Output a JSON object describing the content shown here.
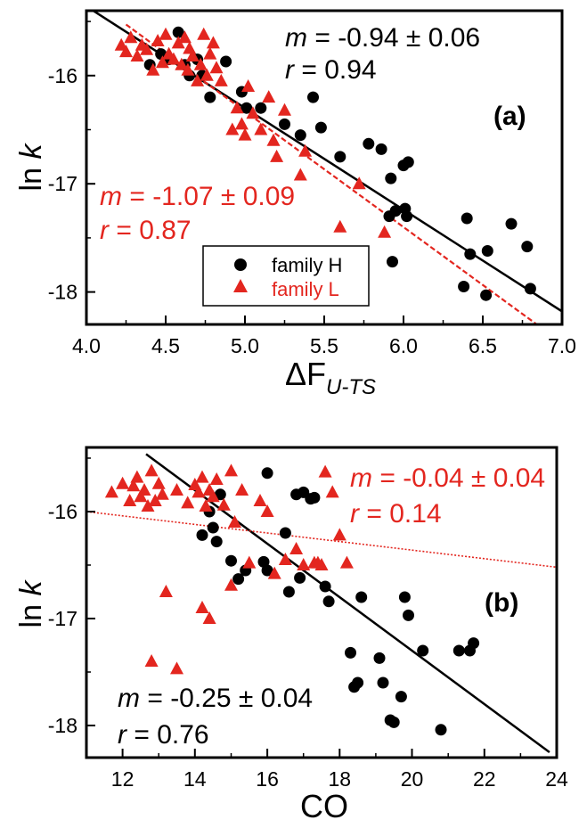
{
  "chart_data": [
    {
      "type": "scatter",
      "panel_label": "(a)",
      "xlabel_prefix": "ΔF",
      "xlabel_sub": "U-TS",
      "ylabel_main": "ln",
      "ylabel_var": "k",
      "xlim": [
        4.0,
        7.0
      ],
      "ylim": [
        -18.3,
        -15.4
      ],
      "xticks": [
        4.0,
        4.5,
        5.0,
        5.5,
        6.0,
        6.5,
        7.0
      ],
      "xtick_labels": [
        "4.0",
        "4.5",
        "5.0",
        "5.5",
        "6.0",
        "6.5",
        "7.0"
      ],
      "yticks": [
        -16,
        -17,
        -18
      ],
      "ytick_labels": [
        "-16",
        "-17",
        "-18"
      ],
      "legend": {
        "position": "lower-center",
        "entries": [
          {
            "series": "H",
            "label": "family H"
          },
          {
            "series": "L",
            "label": "family L"
          }
        ]
      },
      "series": [
        {
          "name": "family H",
          "key": "H",
          "marker": "circle",
          "color": "#000000",
          "x": [
            4.4,
            4.47,
            4.52,
            4.58,
            4.62,
            4.65,
            4.7,
            4.73,
            4.78,
            4.88,
            4.98,
            5.01,
            5.1,
            5.25,
            5.35,
            5.43,
            5.48,
            5.6,
            5.78,
            5.86,
            5.91,
            5.92,
            5.93,
            5.95,
            6.0,
            6.01,
            6.02,
            6.03,
            6.38,
            6.4,
            6.42,
            6.52,
            6.53,
            6.68,
            6.78,
            6.8
          ],
          "y": [
            -15.9,
            -15.8,
            -15.85,
            -15.6,
            -15.9,
            -16.0,
            -15.85,
            -16.0,
            -16.2,
            -15.87,
            -16.15,
            -16.3,
            -16.3,
            -16.45,
            -16.55,
            -16.2,
            -16.48,
            -16.75,
            -16.63,
            -16.68,
            -17.3,
            -16.95,
            -17.72,
            -17.25,
            -16.83,
            -17.23,
            -17.3,
            -16.8,
            -17.95,
            -17.32,
            -17.65,
            -18.03,
            -17.62,
            -17.37,
            -17.58,
            -17.97
          ]
        },
        {
          "name": "family L",
          "key": "L",
          "marker": "triangle",
          "color": "#e3261f",
          "x": [
            4.22,
            4.25,
            4.28,
            4.32,
            4.35,
            4.38,
            4.42,
            4.45,
            4.48,
            4.5,
            4.52,
            4.55,
            4.58,
            4.6,
            4.62,
            4.64,
            4.65,
            4.67,
            4.7,
            4.72,
            4.74,
            4.76,
            4.78,
            4.8,
            4.82,
            4.85,
            4.92,
            4.95,
            4.98,
            5.0,
            5.02,
            5.05,
            5.1,
            5.15,
            5.18,
            5.2,
            5.25,
            5.35,
            5.38,
            5.6,
            5.72,
            5.88
          ],
          "y": [
            -15.72,
            -15.78,
            -15.65,
            -15.82,
            -15.72,
            -15.76,
            -15.95,
            -15.68,
            -15.88,
            -15.62,
            -15.8,
            -15.85,
            -15.7,
            -15.9,
            -15.65,
            -15.95,
            -15.75,
            -15.82,
            -16.05,
            -15.9,
            -15.62,
            -16.0,
            -15.8,
            -15.7,
            -15.93,
            -16.05,
            -16.5,
            -16.3,
            -16.45,
            -16.55,
            -16.1,
            -16.35,
            -16.5,
            -16.2,
            -16.6,
            -16.75,
            -16.32,
            -16.92,
            -16.7,
            -17.4,
            -17.0,
            -17.45
          ]
        }
      ],
      "fits": [
        {
          "series": "H",
          "slope": -0.94,
          "intercept": -11.6,
          "style": "solid",
          "color": "#000000",
          "x_range": [
            4.0,
            7.0
          ]
        },
        {
          "series": "L",
          "slope": -1.07,
          "intercept": -10.98,
          "style": "dashed",
          "color": "#e3261f",
          "x_range": [
            4.25,
            6.85
          ]
        }
      ],
      "annotations": [
        {
          "var": "m",
          "text": " = -0.94 ± 0.06",
          "color": "#000000",
          "pos": "top-right"
        },
        {
          "var": "r",
          "text": " = 0.94",
          "color": "#000000",
          "pos": "top-right"
        },
        {
          "var": "m",
          "text": " = -1.07 ± 0.09",
          "color": "#e3261f",
          "pos": "left"
        },
        {
          "var": "r",
          "text": " = 0.87",
          "color": "#e3261f",
          "pos": "left"
        }
      ]
    },
    {
      "type": "scatter",
      "panel_label": "(b)",
      "xlabel": "CO",
      "ylabel_main": "ln",
      "ylabel_var": "k",
      "xlim": [
        11,
        24
      ],
      "ylim": [
        -18.3,
        -15.4
      ],
      "xticks": [
        12,
        14,
        16,
        18,
        20,
        22,
        24
      ],
      "xtick_labels": [
        "12",
        "14",
        "16",
        "18",
        "20",
        "22",
        "24"
      ],
      "yticks": [
        -16,
        -17,
        -18
      ],
      "ytick_labels": [
        "-16",
        "-17",
        "-18"
      ],
      "series": [
        {
          "name": "family H",
          "key": "H",
          "marker": "circle",
          "color": "#000000",
          "x": [
            14.2,
            14.4,
            14.5,
            14.6,
            14.7,
            15.0,
            15.2,
            15.4,
            15.9,
            16.0,
            16.0,
            16.5,
            16.6,
            16.8,
            16.9,
            17.0,
            17.2,
            17.3,
            17.6,
            17.7,
            18.3,
            18.4,
            18.5,
            18.6,
            19.1,
            19.2,
            19.4,
            19.5,
            19.7,
            19.8,
            19.9,
            20.3,
            20.8,
            21.3,
            21.6,
            21.7
          ],
          "y": [
            -16.22,
            -16.0,
            -16.15,
            -16.28,
            -15.84,
            -16.46,
            -16.63,
            -16.55,
            -16.47,
            -15.64,
            -16.55,
            -16.2,
            -16.75,
            -15.84,
            -16.62,
            -15.82,
            -15.88,
            -15.87,
            -16.7,
            -16.84,
            -17.32,
            -17.64,
            -17.6,
            -16.8,
            -17.37,
            -17.6,
            -17.95,
            -17.97,
            -17.73,
            -16.8,
            -16.97,
            -17.3,
            -18.04,
            -17.3,
            -17.3,
            -17.23
          ]
        },
        {
          "name": "family L",
          "key": "L",
          "marker": "triangle",
          "color": "#e3261f",
          "x": [
            11.7,
            12.0,
            12.2,
            12.3,
            12.4,
            12.5,
            12.6,
            12.7,
            12.8,
            12.9,
            13.0,
            13.1,
            13.5,
            13.8,
            14.0,
            14.1,
            14.2,
            14.3,
            14.4,
            14.5,
            14.6,
            14.8,
            15.0,
            15.1,
            15.3,
            15.5,
            15.8,
            16.0,
            16.2,
            16.5,
            16.8,
            17.0,
            17.3,
            17.5,
            17.8,
            18.0,
            12.8,
            13.5,
            13.2,
            14.2,
            14.4,
            15.0,
            17.6,
            17.4,
            18.2
          ],
          "y": [
            -15.82,
            -15.74,
            -15.9,
            -15.76,
            -15.68,
            -15.86,
            -15.8,
            -15.95,
            -15.62,
            -15.9,
            -15.74,
            -15.84,
            -15.8,
            -15.92,
            -15.75,
            -15.82,
            -15.68,
            -15.95,
            -15.8,
            -15.86,
            -15.7,
            -15.94,
            -15.62,
            -16.1,
            -15.8,
            -16.48,
            -15.9,
            -16.0,
            -16.58,
            -16.45,
            -16.35,
            -16.5,
            -16.48,
            -16.5,
            -15.82,
            -16.22,
            -17.4,
            -17.47,
            -16.75,
            -16.9,
            -17.0,
            -16.69,
            -15.63,
            -16.48,
            -16.48
          ]
        }
      ],
      "fits": [
        {
          "series": "H",
          "slope": -0.25,
          "intercept": -12.3,
          "style": "solid",
          "color": "#000000",
          "x_range": [
            12.65,
            23.8
          ]
        },
        {
          "series": "L",
          "slope": -0.04,
          "intercept": -15.56,
          "style": "dotted",
          "color": "#e3261f",
          "x_range": [
            11.0,
            24.0
          ]
        }
      ],
      "annotations": [
        {
          "var": "m",
          "text": " = -0.04 ± 0.04",
          "color": "#e3261f",
          "pos": "top-right"
        },
        {
          "var": "r",
          "text": " = 0.14",
          "color": "#e3261f",
          "pos": "top-right"
        },
        {
          "var": "m",
          "text": " = -0.25 ± 0.04",
          "color": "#000000",
          "pos": "bottom-left"
        },
        {
          "var": "r",
          "text": " = 0.76",
          "color": "#000000",
          "pos": "bottom-left"
        }
      ]
    }
  ]
}
